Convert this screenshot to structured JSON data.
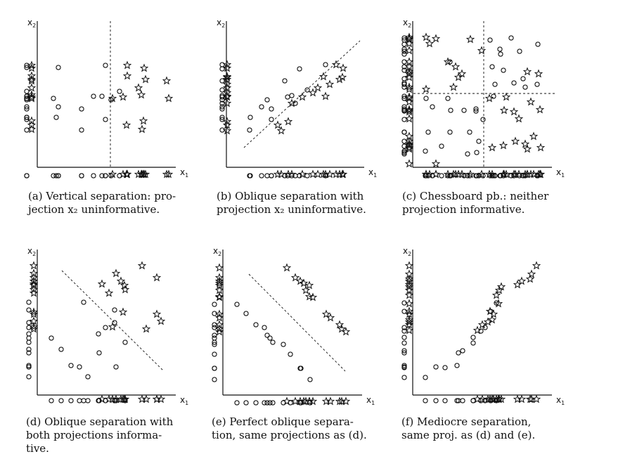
{
  "panels": [
    {
      "id": "a",
      "label": "(a)",
      "caption": "Vertical separation: projection x2 uninformative.",
      "caption_lines": [
        "(a)  Vertical separation: pro-",
        "jection x₂ uninformative."
      ],
      "x_label": "x1",
      "y_label": "x2",
      "separator": "vertical dashed line",
      "circles": [
        [
          83,
          96
        ],
        [
          38,
          140
        ],
        [
          38,
          167
        ],
        [
          116,
          155
        ],
        [
          116,
          185
        ],
        [
          150,
          93
        ],
        [
          150,
          170
        ],
        [
          133,
          137
        ],
        [
          145,
          137
        ],
        [
          158,
          142
        ],
        [
          170,
          130
        ],
        [
          76,
          140
        ],
        [
          83,
          152
        ],
        [
          80,
          167
        ]
      ],
      "stars": [
        [
          160,
          140
        ],
        [
          181,
          93
        ],
        [
          181,
          108
        ],
        [
          205,
          97
        ],
        [
          175,
          138
        ],
        [
          197,
          125
        ],
        [
          207,
          113
        ],
        [
          204,
          172
        ],
        [
          180,
          178
        ],
        [
          202,
          184
        ],
        [
          237,
          115
        ],
        [
          240,
          140
        ],
        [
          201,
          135
        ]
      ],
      "separator_line": [
        [
          157,
          30
        ],
        [
          157,
          238
        ]
      ]
    },
    {
      "id": "b",
      "label": "(b)",
      "caption": "Oblique separation with projection x2 uninformative.",
      "caption_lines": [
        "(b)  Oblique separation with",
        "projection x₂ uninformative."
      ],
      "x_label": "x1",
      "y_label": "x2",
      "separator": "oblique dashed line",
      "circles": [
        [
          356,
          167
        ],
        [
          355,
          185
        ],
        [
          372,
          152
        ],
        [
          380,
          142
        ],
        [
          386,
          170
        ],
        [
          405,
          115
        ],
        [
          409,
          138
        ],
        [
          415,
          136
        ],
        [
          420,
          147
        ],
        [
          426,
          98
        ],
        [
          437,
          128
        ],
        [
          463,
          92
        ],
        [
          386,
          155
        ]
      ],
      "stars": [
        [
          395,
          178
        ],
        [
          400,
          186
        ],
        [
          410,
          173
        ],
        [
          415,
          147
        ],
        [
          430,
          138
        ],
        [
          445,
          132
        ],
        [
          452,
          125
        ],
        [
          460,
          109
        ],
        [
          463,
          137
        ],
        [
          469,
          120
        ],
        [
          478,
          92
        ],
        [
          483,
          113
        ],
        [
          488,
          97
        ],
        [
          487,
          110
        ]
      ],
      "separator_line": [
        [
          347,
          210
        ],
        [
          512,
          58
        ]
      ]
    },
    {
      "id": "c",
      "label": "(c)",
      "caption": "Chessboard pb.: neither projection informative.",
      "caption_lines": [
        "(c)  Chessboard pb.:  neither",
        "projection informative."
      ],
      "x_label": "x1",
      "y_label": "x2",
      "separator": "horizontal and vertical dashed lines",
      "circles": [
        [
          606,
          140
        ],
        [
          615,
          152
        ],
        [
          637,
          140
        ],
        [
          640,
          88
        ],
        [
          641,
          157
        ],
        [
          660,
          157
        ],
        [
          677,
          158
        ],
        [
          700,
          95
        ],
        [
          702,
          137
        ],
        [
          704,
          120
        ],
        [
          711,
          70
        ],
        [
          712,
          77
        ],
        [
          716,
          100
        ],
        [
          727,
          54
        ],
        [
          739,
          73
        ],
        [
          731,
          118
        ],
        [
          744,
          112
        ],
        [
          747,
          124
        ],
        [
          765,
          63
        ],
        [
          764,
          120
        ],
        [
          605,
          215
        ],
        [
          609,
          188
        ],
        [
          628,
          208
        ],
        [
          640,
          188
        ],
        [
          668,
          188
        ],
        [
          665,
          219
        ],
        [
          678,
          217
        ],
        [
          681,
          201
        ],
        [
          697,
          57
        ],
        [
          687,
          170
        ],
        [
          677,
          155
        ]
      ],
      "stars": [
        [
          606,
          53
        ],
        [
          611,
          62
        ],
        [
          620,
          55
        ],
        [
          637,
          88
        ],
        [
          652,
          110
        ],
        [
          648,
          95
        ],
        [
          645,
          124
        ],
        [
          657,
          105
        ],
        [
          669,
          56
        ],
        [
          685,
          72
        ],
        [
          606,
          127
        ],
        [
          696,
          140
        ],
        [
          720,
          138
        ],
        [
          717,
          157
        ],
        [
          731,
          159
        ],
        [
          738,
          169
        ],
        [
          755,
          145
        ],
        [
          768,
          156
        ],
        [
          766,
          105
        ],
        [
          750,
          102
        ],
        [
          700,
          210
        ],
        [
          716,
          207
        ],
        [
          733,
          201
        ],
        [
          747,
          205
        ],
        [
          759,
          194
        ],
        [
          769,
          210
        ],
        [
          750,
          212
        ],
        [
          620,
          233
        ]
      ],
      "separator_lines": [
        [
          [
            588,
            133
          ],
          [
            790,
            133
          ]
        ],
        [
          [
            688,
            30
          ],
          [
            688,
            240
          ]
        ]
      ]
    },
    {
      "id": "d",
      "label": "(d)",
      "caption": "Oblique separation with both projections informative.",
      "caption_lines": [
        "(d)  Oblique separation with",
        "both   projections   informa-",
        "tive."
      ],
      "x_label": "x1",
      "y_label": "x2",
      "separator": "oblique dashed line",
      "circles": [
        [
          73,
          481
        ],
        [
          87,
          497
        ],
        [
          101,
          520
        ],
        [
          113,
          522
        ],
        [
          125,
          536
        ],
        [
          119,
          430
        ],
        [
          140,
          475
        ],
        [
          141,
          502
        ],
        [
          150,
          466
        ],
        [
          163,
          441
        ],
        [
          163,
          459
        ],
        [
          165,
          522
        ],
        [
          178,
          487
        ]
      ],
      "stars": [
        [
          145,
          404
        ],
        [
          155,
          417
        ],
        [
          165,
          389
        ],
        [
          172,
          400
        ],
        [
          177,
          406
        ],
        [
          178,
          412
        ],
        [
          175,
          444
        ],
        [
          160,
          465
        ],
        [
          202,
          378
        ],
        [
          223,
          395
        ],
        [
          223,
          447
        ],
        [
          229,
          457
        ],
        [
          208,
          468
        ]
      ],
      "separator_line": [
        [
          88,
          385
        ],
        [
          232,
          527
        ]
      ]
    },
    {
      "id": "e",
      "label": "(e)",
      "caption": "Perfect oblique separation, same projections as (d).",
      "caption_lines": [
        "(e)  Perfect oblique separa-",
        "tion, same projections as (d)."
      ],
      "x_label": "x1",
      "y_label": "x2",
      "separator": "oblique dashed line",
      "circles": [
        [
          337,
          433
        ],
        [
          350,
          446
        ],
        [
          364,
          462
        ],
        [
          376,
          466
        ],
        [
          380,
          477
        ],
        [
          384,
          481
        ],
        [
          388,
          487
        ],
        [
          403,
          490
        ],
        [
          413,
          504
        ],
        [
          428,
          524
        ],
        [
          427,
          524
        ],
        [
          441,
          540
        ]
      ],
      "stars": [
        [
          408,
          381
        ],
        [
          420,
          395
        ],
        [
          427,
          400
        ],
        [
          432,
          403
        ],
        [
          435,
          413
        ],
        [
          440,
          422
        ],
        [
          445,
          423
        ],
        [
          440,
          406
        ],
        [
          464,
          447
        ],
        [
          470,
          452
        ],
        [
          483,
          462
        ],
        [
          486,
          468
        ],
        [
          492,
          472
        ]
      ],
      "separator_line": [
        [
          354,
          390
        ],
        [
          491,
          528
        ]
      ]
    },
    {
      "id": "f",
      "label": "(f)",
      "caption": "Mediocre separation, same proj. as (d) and (e).",
      "caption_lines": [
        "(f)  Mediocre    separation,",
        "same proj. as (d) and (e)."
      ],
      "x_label": "x1",
      "y_label": "x2",
      "separator": "none",
      "circles": [
        [
          605,
          537
        ],
        [
          620,
          522
        ],
        [
          633,
          523
        ],
        [
          650,
          520
        ],
        [
          652,
          502
        ],
        [
          658,
          499
        ],
        [
          673,
          488
        ],
        [
          673,
          480
        ],
        [
          684,
          471
        ],
        [
          690,
          466
        ],
        [
          698,
          443
        ],
        [
          706,
          431
        ]
      ],
      "stars": [
        [
          679,
          470
        ],
        [
          686,
          462
        ],
        [
          694,
          458
        ],
        [
          697,
          443
        ],
        [
          702,
          447
        ],
        [
          709,
          432
        ],
        [
          706,
          420
        ],
        [
          710,
          413
        ],
        [
          713,
          408
        ],
        [
          736,
          405
        ],
        [
          742,
          400
        ],
        [
          754,
          397
        ],
        [
          756,
          390
        ],
        [
          763,
          378
        ],
        [
          700,
          455
        ]
      ]
    }
  ]
}
